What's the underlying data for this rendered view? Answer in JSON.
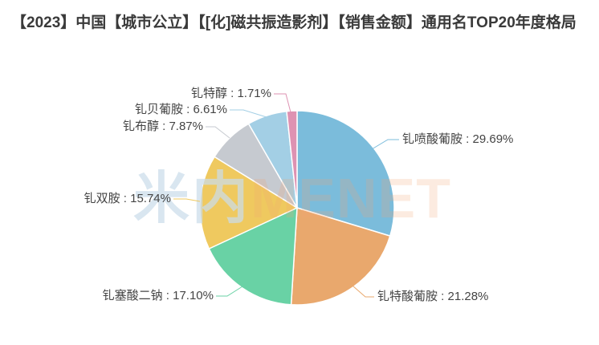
{
  "title": "【2023】中国【城市公立】【[化]磁共振造影剂】【销售金额】通用名TOP20年度格局",
  "watermark": {
    "cn": "米内",
    "en": "MENET"
  },
  "chart_data": {
    "type": "pie",
    "title": "【2023】中国【城市公立】【[化]磁共振造影剂】【销售金额】通用名TOP20年度格局",
    "unit": "%",
    "label_format": "{name} : {value}%",
    "start_angle": "12-o'clock",
    "direction": "clockwise",
    "legend": "none",
    "background": "#ffffff",
    "label_color": "#444444",
    "slices": [
      {
        "name": "钆喷酸葡胺",
        "value": 29.69,
        "label": "钆喷酸葡胺 : 29.69%",
        "color": "#7BBCDB"
      },
      {
        "name": "钆特酸葡胺",
        "value": 21.28,
        "label": "钆特酸葡胺 : 21.28%",
        "color": "#E9A86D"
      },
      {
        "name": "钆塞酸二钠",
        "value": 17.1,
        "label": "钆塞酸二钠 : 17.10%",
        "color": "#69D2A5"
      },
      {
        "name": "钆双胺",
        "value": 15.74,
        "label": "钆双胺 : 15.74%",
        "color": "#EFC95F"
      },
      {
        "name": "钆布醇",
        "value": 7.87,
        "label": "钆布醇 : 7.87%",
        "color": "#C6CAD0"
      },
      {
        "name": "钆贝葡胺",
        "value": 6.61,
        "label": "钆贝葡胺 : 6.61%",
        "color": "#A3CFE5"
      },
      {
        "name": "钆特醇",
        "value": 1.71,
        "label": "钆特醇 : 1.71%",
        "color": "#DE92B2"
      }
    ]
  }
}
